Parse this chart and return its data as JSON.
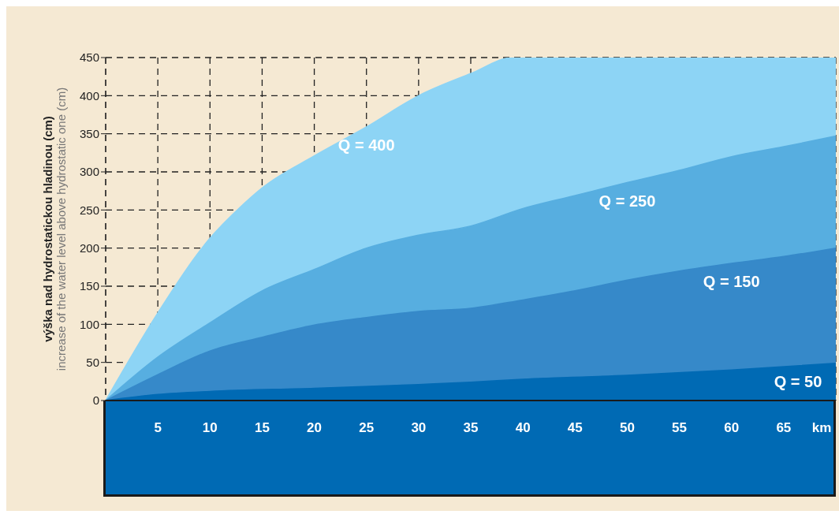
{
  "chart_data": {
    "type": "area",
    "xlabel": "km",
    "ylabel": "výška nad hydrostatickou hladinou (cm)\nincrease of the water level above hydrostatic one (cm)",
    "xlim": [
      0,
      70
    ],
    "xticks": [
      5,
      10,
      15,
      20,
      25,
      30,
      35,
      40,
      45,
      50,
      55,
      60,
      65
    ],
    "ylim": [
      0,
      450
    ],
    "yticks": [
      0,
      50,
      100,
      150,
      200,
      250,
      300,
      350,
      400,
      450
    ],
    "grid": true,
    "line_style": "dashed",
    "series": [
      {
        "name": "Q = 400",
        "color": "#8dd4f5",
        "x": [
          0,
          5,
          10,
          13,
          15,
          20,
          25,
          30,
          35,
          39,
          70
        ],
        "values": [
          0,
          115,
          213,
          255,
          279,
          321,
          359,
          400,
          429,
          450,
          450
        ]
      },
      {
        "name": "Q = 250",
        "color": "#57aee0",
        "x": [
          0,
          5,
          10,
          15,
          20,
          25,
          30,
          35,
          40,
          45,
          50,
          55,
          60,
          65,
          70
        ],
        "values": [
          0,
          57,
          102,
          144,
          172,
          200,
          217,
          229,
          252,
          269,
          286,
          302,
          320,
          333,
          347
        ]
      },
      {
        "name": "Q = 150",
        "color": "#3689c9",
        "x": [
          0,
          5,
          10,
          15,
          20,
          25,
          30,
          35,
          40,
          45,
          50,
          55,
          60,
          65,
          70
        ],
        "values": [
          0,
          34,
          65,
          83,
          99,
          109,
          117,
          121,
          132,
          144,
          158,
          170,
          180,
          189,
          200
        ]
      },
      {
        "name": "Q = 50",
        "color": "#006ab4",
        "x": [
          0,
          5,
          10,
          20,
          30,
          35,
          40,
          50,
          60,
          70
        ],
        "values": [
          0,
          8,
          12,
          16,
          21,
          24,
          28,
          33,
          40,
          49
        ]
      }
    ]
  }
}
